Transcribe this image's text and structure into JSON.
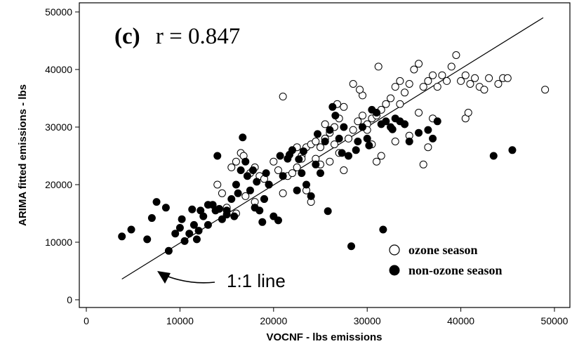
{
  "chart_data": {
    "type": "scatter",
    "panel_label": {
      "letter": "(c)",
      "stat": "r = 0.847"
    },
    "xlabel": "VOCNF - lbs emissions",
    "ylabel": "ARIMA fitted emissions - lbs",
    "xlim": [
      0,
      50000
    ],
    "ylim": [
      0,
      50000
    ],
    "x_ticks": [
      0,
      10000,
      20000,
      30000,
      40000,
      50000
    ],
    "y_ticks": [
      0,
      10000,
      20000,
      30000,
      40000,
      50000
    ],
    "grid": false,
    "legend_position": "bottom-right",
    "reference_line": {
      "label": "1:1 line",
      "x": [
        3800,
        48800
      ],
      "y": [
        3600,
        49000
      ]
    },
    "series": [
      {
        "name": "ozone season",
        "marker": "open-circle",
        "points": [
          [
            21000,
            35300
          ],
          [
            15500,
            23000
          ],
          [
            16000,
            24000
          ],
          [
            16500,
            25500
          ],
          [
            16800,
            25000
          ],
          [
            17500,
            22000
          ],
          [
            18000,
            23000
          ],
          [
            18500,
            21500
          ],
          [
            19000,
            21000
          ],
          [
            19500,
            20000
          ],
          [
            14000,
            20000
          ],
          [
            14500,
            18500
          ],
          [
            15000,
            16000
          ],
          [
            16000,
            15000
          ],
          [
            17000,
            18000
          ],
          [
            18000,
            17000
          ],
          [
            19000,
            17500
          ],
          [
            21000,
            18500
          ],
          [
            21500,
            21500
          ],
          [
            22000,
            22000
          ],
          [
            22500,
            23000
          ],
          [
            23000,
            25000
          ],
          [
            23500,
            26500
          ],
          [
            24000,
            27000
          ],
          [
            24500,
            27500
          ],
          [
            25000,
            26500
          ],
          [
            25500,
            28000
          ],
          [
            26000,
            29000
          ],
          [
            26500,
            30000
          ],
          [
            27000,
            31500
          ],
          [
            27500,
            33500
          ],
          [
            26800,
            34000
          ],
          [
            25500,
            30500
          ],
          [
            24500,
            24500
          ],
          [
            24000,
            17000
          ],
          [
            23500,
            19000
          ],
          [
            28000,
            28000
          ],
          [
            28500,
            29500
          ],
          [
            29000,
            31000
          ],
          [
            29500,
            32000
          ],
          [
            30000,
            30500
          ],
          [
            30500,
            31500
          ],
          [
            31000,
            32000
          ],
          [
            31500,
            33000
          ],
          [
            32000,
            34000
          ],
          [
            32500,
            35000
          ],
          [
            33000,
            37000
          ],
          [
            33500,
            38000
          ],
          [
            34000,
            36000
          ],
          [
            34500,
            37500
          ],
          [
            35000,
            40000
          ],
          [
            35500,
            41000
          ],
          [
            36000,
            37000
          ],
          [
            36500,
            38000
          ],
          [
            37000,
            39000
          ],
          [
            37500,
            37000
          ],
          [
            38000,
            39000
          ],
          [
            38500,
            38000
          ],
          [
            39000,
            40500
          ],
          [
            39500,
            42500
          ],
          [
            40000,
            38000
          ],
          [
            40500,
            39000
          ],
          [
            41000,
            37500
          ],
          [
            41500,
            38500
          ],
          [
            42000,
            37000
          ],
          [
            42500,
            36500
          ],
          [
            43000,
            38500
          ],
          [
            44000,
            37500
          ],
          [
            44500,
            38500
          ],
          [
            45000,
            38500
          ],
          [
            49000,
            36500
          ],
          [
            40500,
            31500
          ],
          [
            40800,
            32500
          ],
          [
            37000,
            31500
          ],
          [
            36500,
            26500
          ],
          [
            36000,
            23500
          ],
          [
            35500,
            32500
          ],
          [
            34500,
            28500
          ],
          [
            34000,
            30500
          ],
          [
            33000,
            27500
          ],
          [
            31500,
            25000
          ],
          [
            31000,
            24000
          ],
          [
            30500,
            27000
          ],
          [
            30000,
            29500
          ],
          [
            29500,
            35500
          ],
          [
            28500,
            37500
          ],
          [
            29200,
            36500
          ],
          [
            31200,
            40500
          ],
          [
            33500,
            34000
          ],
          [
            27500,
            22500
          ],
          [
            27000,
            25500
          ],
          [
            26500,
            27000
          ],
          [
            26000,
            24000
          ],
          [
            25000,
            23500
          ],
          [
            20000,
            24000
          ],
          [
            20500,
            22500
          ],
          [
            22500,
            26500
          ],
          [
            23000,
            24500
          ]
        ]
      },
      {
        "name": "non-ozone season",
        "marker": "filled-circle",
        "points": [
          [
            3800,
            11000
          ],
          [
            4800,
            12200
          ],
          [
            6500,
            10500
          ],
          [
            7000,
            14200
          ],
          [
            7500,
            17000
          ],
          [
            8500,
            16000
          ],
          [
            8800,
            8500
          ],
          [
            9500,
            11500
          ],
          [
            10000,
            12500
          ],
          [
            10200,
            14000
          ],
          [
            10500,
            10200
          ],
          [
            11000,
            11500
          ],
          [
            11500,
            13000
          ],
          [
            11800,
            10500
          ],
          [
            12000,
            12000
          ],
          [
            12500,
            14500
          ],
          [
            13000,
            13000
          ],
          [
            13500,
            16500
          ],
          [
            13800,
            15500
          ],
          [
            14000,
            25000
          ],
          [
            14500,
            14000
          ],
          [
            15000,
            15500
          ],
          [
            15500,
            17500
          ],
          [
            15800,
            14500
          ],
          [
            16000,
            20000
          ],
          [
            16200,
            18500
          ],
          [
            16500,
            22500
          ],
          [
            16700,
            28200
          ],
          [
            17000,
            24000
          ],
          [
            17200,
            21500
          ],
          [
            17500,
            19000
          ],
          [
            17800,
            22500
          ],
          [
            18000,
            16000
          ],
          [
            18500,
            15500
          ],
          [
            18800,
            13500
          ],
          [
            19000,
            17500
          ],
          [
            19500,
            20000
          ],
          [
            20000,
            14500
          ],
          [
            20500,
            13800
          ],
          [
            21000,
            21500
          ],
          [
            21500,
            24500
          ],
          [
            22000,
            26000
          ],
          [
            22500,
            19000
          ],
          [
            23000,
            22000
          ],
          [
            23500,
            20000
          ],
          [
            24000,
            18000
          ],
          [
            24500,
            23500
          ],
          [
            25000,
            22000
          ],
          [
            25500,
            27500
          ],
          [
            25800,
            15400
          ],
          [
            26000,
            29500
          ],
          [
            26300,
            33500
          ],
          [
            26600,
            32000
          ],
          [
            27000,
            28000
          ],
          [
            27500,
            30000
          ],
          [
            28000,
            25000
          ],
          [
            28300,
            9300
          ],
          [
            28800,
            26000
          ],
          [
            29500,
            30000
          ],
          [
            30000,
            28000
          ],
          [
            30500,
            33000
          ],
          [
            31000,
            32500
          ],
          [
            31500,
            30500
          ],
          [
            31700,
            12200
          ],
          [
            32000,
            31000
          ],
          [
            32500,
            30000
          ],
          [
            33000,
            31500
          ],
          [
            33500,
            31000
          ],
          [
            34000,
            30500
          ],
          [
            34500,
            27500
          ],
          [
            35500,
            29000
          ],
          [
            36500,
            29500
          ],
          [
            37000,
            28000
          ],
          [
            37500,
            31000
          ],
          [
            43500,
            25000
          ],
          [
            45500,
            26000
          ],
          [
            15000,
            14800
          ],
          [
            14200,
            15800
          ],
          [
            13000,
            16500
          ],
          [
            12200,
            15500
          ],
          [
            11300,
            15700
          ],
          [
            18200,
            20500
          ],
          [
            19200,
            22000
          ],
          [
            21700,
            25200
          ],
          [
            23200,
            25800
          ],
          [
            24700,
            28800
          ],
          [
            27300,
            25500
          ],
          [
            29000,
            27500
          ],
          [
            30200,
            26800
          ],
          [
            32700,
            29600
          ],
          [
            22700,
            24400
          ],
          [
            20700,
            25000
          ]
        ]
      }
    ]
  },
  "annotations": {
    "ref_line_label": "1:1 line",
    "legend_items": [
      "ozone season",
      "non-ozone season"
    ]
  }
}
